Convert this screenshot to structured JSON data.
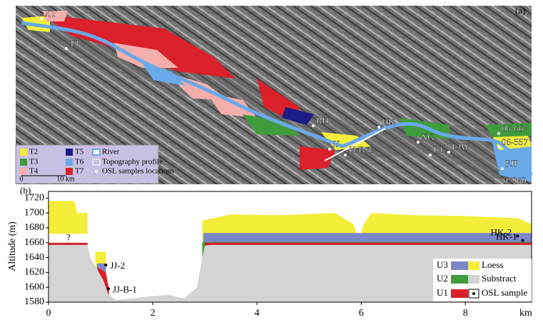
{
  "map": {
    "panel_label": "(a)",
    "places": [
      "XT",
      "TJ",
      "RH",
      "HK",
      "JJ",
      "JJ-B-1",
      "XG",
      "LJ",
      "LJW",
      "06-667",
      "06-557",
      "FJP",
      "07260"
    ],
    "legend": [
      {
        "label": "T2",
        "color": "#f2ee3a"
      },
      {
        "label": "T3",
        "color": "#3f9c3c"
      },
      {
        "label": "T4",
        "color": "#f4aeac"
      },
      {
        "label": "T5",
        "color": "#1b1c86"
      },
      {
        "label": "T6",
        "color": "#6aa9ea"
      },
      {
        "label": "T7",
        "color": "#d9202b"
      },
      {
        "label": "River",
        "color": "#6aa9ea"
      },
      {
        "label": "Topography profile",
        "color": "#ffffff"
      },
      {
        "label": "OSL samples locations",
        "color": "#ffffff"
      }
    ],
    "scale": [
      "0",
      "10 km"
    ]
  },
  "chart_data": {
    "type": "area",
    "panel_label": "(b)",
    "xlabel": "km",
    "ylabel": "Altitude (m)",
    "xlim": [
      0,
      9.27
    ],
    "ylim": [
      1580,
      1729
    ],
    "xticks": [
      0,
      2,
      4,
      6,
      8
    ],
    "yticks": [
      1580,
      1600,
      1620,
      1640,
      1660,
      1680,
      1700,
      1720
    ],
    "unknown_label": "?",
    "series": [
      {
        "name": "Loess",
        "color": "#f2ee3a",
        "x": [
          0,
          0.5,
          0.55,
          0.75,
          0.76,
          0.9,
          1.1,
          1.11,
          2.95,
          3.5,
          4.5,
          5.5,
          5.85,
          5.95,
          6.05,
          6.2,
          7,
          8,
          9,
          9.27
        ],
        "values": [
          1716,
          1716,
          1700,
          1700,
          null,
          1648,
          1648,
          null,
          1690,
          1698,
          1697,
          1700,
          1685,
          1665,
          1685,
          1700,
          1697,
          1696,
          1693,
          1685
        ]
      },
      {
        "name": "U3",
        "color": "#7d86c8",
        "x": [
          0.93,
          1.1,
          1.11,
          2.97,
          9.27
        ],
        "values": [
          1632,
          1632,
          null,
          1673,
          1673
        ]
      },
      {
        "name": "U2",
        "color": "#3f9c3c",
        "x": [
          2.95,
          9.27
        ],
        "values": [
          1661,
          1661
        ]
      },
      {
        "name": "U1",
        "color": "#d9202b",
        "x": [
          0,
          0.75,
          0.76,
          0.95,
          1.1,
          1.16,
          1.17,
          3.0,
          9.27
        ],
        "values": [
          1660,
          1660,
          null,
          1627,
          1620,
          1598,
          null,
          1660,
          1660
        ]
      },
      {
        "name": "Substract",
        "color": "#d4d4d4",
        "x": [
          0,
          0.75,
          0.8,
          0.95,
          1.05,
          1.15,
          1.3,
          1.6,
          2.0,
          2.3,
          2.6,
          2.85,
          2.95,
          3.0,
          3.1,
          5,
          7,
          9.27
        ],
        "values": [
          1657,
          1657,
          1640,
          1622,
          1610,
          1590,
          1583,
          1585,
          1588,
          1590,
          1585,
          1600,
          1640,
          1656,
          1657,
          1657,
          1657,
          1657
        ]
      }
    ],
    "samples": {
      "name": "OSL sample",
      "color": "#000000",
      "x": [
        1.1,
        1.15,
        9.0,
        9.1
      ],
      "values": [
        1630,
        1598,
        1669,
        1663
      ],
      "labels": [
        "JJ-2",
        "JJ-B-1",
        "HK-2",
        "HK-1"
      ]
    }
  }
}
